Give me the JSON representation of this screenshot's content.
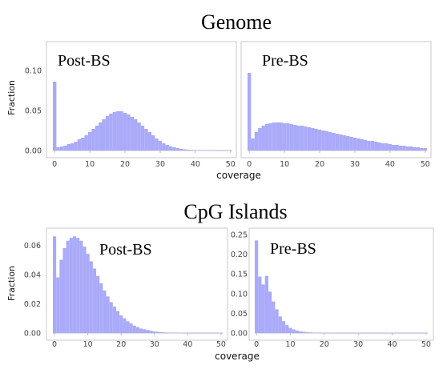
{
  "colors": {
    "bar": "#aaaafa",
    "bar_edge": "#8e8ee0"
  },
  "sections": [
    {
      "title": "Genome",
      "xlabel": "coverage",
      "ylabel": "Fraction"
    },
    {
      "title": "CpG Islands",
      "xlabel": "coverage",
      "ylabel": "Fraction"
    }
  ],
  "chart_data": [
    {
      "type": "bar",
      "section": "Genome",
      "label": "Post-BS",
      "ylabel": "Fraction",
      "xlabel": "",
      "xlim": [
        0,
        50
      ],
      "ylim": [
        0,
        0.13
      ],
      "xticks": [
        0,
        10,
        20,
        30,
        40,
        50
      ],
      "yticks": [
        0.0,
        0.05,
        0.1
      ],
      "ytick_labels": [
        "0.00",
        "0.05",
        "0.10"
      ],
      "x": [
        0,
        1,
        2,
        3,
        4,
        5,
        6,
        7,
        8,
        9,
        10,
        11,
        12,
        13,
        14,
        15,
        16,
        17,
        18,
        19,
        20,
        21,
        22,
        23,
        24,
        25,
        26,
        27,
        28,
        29,
        30,
        31,
        32,
        33,
        34,
        35,
        36,
        37,
        38,
        39,
        40,
        41,
        42,
        43,
        44,
        45,
        46,
        47,
        48,
        49,
        50
      ],
      "values": [
        0.086,
        0.004,
        0.005,
        0.006,
        0.008,
        0.009,
        0.011,
        0.014,
        0.016,
        0.019,
        0.023,
        0.027,
        0.031,
        0.035,
        0.039,
        0.043,
        0.046,
        0.048,
        0.049,
        0.049,
        0.047,
        0.045,
        0.042,
        0.039,
        0.035,
        0.031,
        0.027,
        0.023,
        0.019,
        0.015,
        0.012,
        0.009,
        0.007,
        0.005,
        0.004,
        0.003,
        0.002,
        0.0015,
        0.001,
        0.0007,
        0.0005,
        0.0003,
        0.0002,
        0.0001,
        0.0001,
        0.0001,
        0,
        0,
        0,
        0,
        0
      ]
    },
    {
      "type": "bar",
      "section": "Genome",
      "label": "Pre-BS",
      "ylabel": "",
      "xlabel": "coverage",
      "xlim": [
        0,
        50
      ],
      "ylim": [
        0,
        0.13
      ],
      "xticks": [
        0,
        10,
        20,
        30,
        40,
        50
      ],
      "yticks": [],
      "ytick_labels": [],
      "x": [
        0,
        1,
        2,
        3,
        4,
        5,
        6,
        7,
        8,
        9,
        10,
        11,
        12,
        13,
        14,
        15,
        16,
        17,
        18,
        19,
        20,
        21,
        22,
        23,
        24,
        25,
        26,
        27,
        28,
        29,
        30,
        31,
        32,
        33,
        34,
        35,
        36,
        37,
        38,
        39,
        40,
        41,
        42,
        43,
        44,
        45,
        46,
        47,
        48,
        49,
        50
      ],
      "values": [
        0.097,
        0.015,
        0.023,
        0.028,
        0.031,
        0.033,
        0.034,
        0.035,
        0.035,
        0.035,
        0.034,
        0.034,
        0.033,
        0.032,
        0.031,
        0.031,
        0.03,
        0.029,
        0.028,
        0.027,
        0.026,
        0.025,
        0.024,
        0.023,
        0.022,
        0.021,
        0.02,
        0.019,
        0.018,
        0.017,
        0.016,
        0.015,
        0.014,
        0.013,
        0.012,
        0.012,
        0.011,
        0.01,
        0.009,
        0.009,
        0.008,
        0.007,
        0.007,
        0.006,
        0.006,
        0.005,
        0.005,
        0.004,
        0.004,
        0.003,
        0.003
      ]
    },
    {
      "type": "bar",
      "section": "CpG Islands",
      "label": "Post-BS",
      "ylabel": "Fraction",
      "xlabel": "",
      "xlim": [
        0,
        50
      ],
      "ylim": [
        0,
        0.07
      ],
      "xticks": [
        0,
        10,
        20,
        30,
        40,
        50
      ],
      "yticks": [
        0.0,
        0.02,
        0.04,
        0.06
      ],
      "ytick_labels": [
        "0.00",
        "0.02",
        "0.04",
        "0.06"
      ],
      "x": [
        0,
        1,
        2,
        3,
        4,
        5,
        6,
        7,
        8,
        9,
        10,
        11,
        12,
        13,
        14,
        15,
        16,
        17,
        18,
        19,
        20,
        21,
        22,
        23,
        24,
        25,
        26,
        27,
        28,
        29,
        30,
        31,
        32,
        33,
        34,
        35,
        36,
        37,
        38,
        39,
        40,
        41,
        42,
        43,
        44,
        45,
        46,
        47,
        48,
        49,
        50
      ],
      "values": [
        0.066,
        0.038,
        0.05,
        0.058,
        0.063,
        0.065,
        0.066,
        0.065,
        0.063,
        0.059,
        0.054,
        0.049,
        0.044,
        0.039,
        0.034,
        0.029,
        0.025,
        0.021,
        0.018,
        0.015,
        0.012,
        0.01,
        0.008,
        0.0065,
        0.005,
        0.004,
        0.003,
        0.0025,
        0.002,
        0.0015,
        0.001,
        0.0008,
        0.0006,
        0.0004,
        0.0003,
        0.0002,
        0.0001,
        0.0001,
        0.0001,
        0,
        0,
        0,
        0,
        0,
        0,
        0,
        0,
        0,
        0,
        0,
        0
      ]
    },
    {
      "type": "bar",
      "section": "CpG Islands",
      "label": "Pre-BS",
      "ylabel": "",
      "xlabel": "coverage",
      "xlim": [
        0,
        50
      ],
      "ylim": [
        0,
        0.26
      ],
      "xticks": [
        0,
        10,
        20,
        30,
        40,
        50
      ],
      "yticks": [
        0.0,
        0.05,
        0.1,
        0.15,
        0.2,
        0.25
      ],
      "ytick_labels": [
        "0.00",
        "0.05",
        "0.10",
        "0.15",
        "0.20",
        "0.25"
      ],
      "x": [
        0,
        1,
        2,
        3,
        4,
        5,
        6,
        7,
        8,
        9,
        10,
        11,
        12,
        13,
        14,
        15,
        16,
        17,
        18,
        19,
        20,
        21,
        22,
        23,
        24,
        25,
        26,
        27,
        28,
        29,
        30,
        31,
        32,
        33,
        34,
        35,
        36,
        37,
        38,
        39,
        40,
        41,
        42,
        43,
        44,
        45,
        46,
        47,
        48,
        49,
        50
      ],
      "values": [
        0.235,
        0.143,
        0.123,
        0.145,
        0.105,
        0.08,
        0.06,
        0.042,
        0.03,
        0.02,
        0.013,
        0.009,
        0.006,
        0.004,
        0.003,
        0.002,
        0.0015,
        0.001,
        0.0007,
        0.0005,
        0.0003,
        0.0002,
        0.0001,
        0.0001,
        0,
        0,
        0,
        0,
        0,
        0,
        0,
        0,
        0,
        0,
        0,
        0,
        0,
        0,
        0,
        0,
        0,
        0,
        0,
        0,
        0,
        0,
        0,
        0,
        0,
        0,
        0
      ]
    }
  ]
}
